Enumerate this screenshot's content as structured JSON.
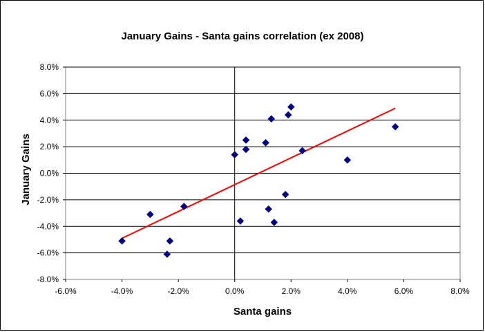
{
  "chart_data": {
    "type": "scatter",
    "title": "January Gains - Santa gains correlation (ex 2008)",
    "xlabel": "Santa gains",
    "ylabel": "January Gains",
    "xlim": [
      -6.0,
      8.0
    ],
    "ylim": [
      -8.0,
      8.0
    ],
    "x_ticks": [
      -6,
      -4,
      -2,
      0,
      2,
      4,
      6,
      8
    ],
    "y_ticks": [
      -8,
      -6,
      -4,
      -2,
      0,
      2,
      4,
      6,
      8
    ],
    "x_tick_labels": [
      "-6.0%",
      "-4.0%",
      "-2.0%",
      "0.0%",
      "2.0%",
      "4.0%",
      "6.0%",
      "8.0%"
    ],
    "y_tick_labels": [
      "-8.0%",
      "-6.0%",
      "-4.0%",
      "-2.0%",
      "0.0%",
      "2.0%",
      "4.0%",
      "6.0%",
      "8.0%"
    ],
    "grid": "horizontal",
    "legend": "none",
    "marker_color": "#000080",
    "trendline_color": "#ff0000",
    "points": [
      {
        "x": -4.0,
        "y": -5.1
      },
      {
        "x": -3.0,
        "y": -3.1
      },
      {
        "x": -2.4,
        "y": -6.1
      },
      {
        "x": -2.3,
        "y": -5.1
      },
      {
        "x": -1.8,
        "y": -2.5
      },
      {
        "x": 0.0,
        "y": 1.4
      },
      {
        "x": 0.2,
        "y": -3.6
      },
      {
        "x": 0.4,
        "y": 2.5
      },
      {
        "x": 0.4,
        "y": 1.8
      },
      {
        "x": 1.1,
        "y": 2.3
      },
      {
        "x": 1.2,
        "y": -2.7
      },
      {
        "x": 1.3,
        "y": 4.1
      },
      {
        "x": 1.4,
        "y": -3.7
      },
      {
        "x": 1.8,
        "y": -1.6
      },
      {
        "x": 1.9,
        "y": 4.4
      },
      {
        "x": 2.0,
        "y": 5.0
      },
      {
        "x": 2.4,
        "y": 1.7
      },
      {
        "x": 4.0,
        "y": 1.0
      },
      {
        "x": 5.7,
        "y": 3.5
      }
    ],
    "trendline": {
      "x": [
        -4.0,
        5.7
      ],
      "y": [
        -4.9,
        4.9
      ]
    }
  }
}
